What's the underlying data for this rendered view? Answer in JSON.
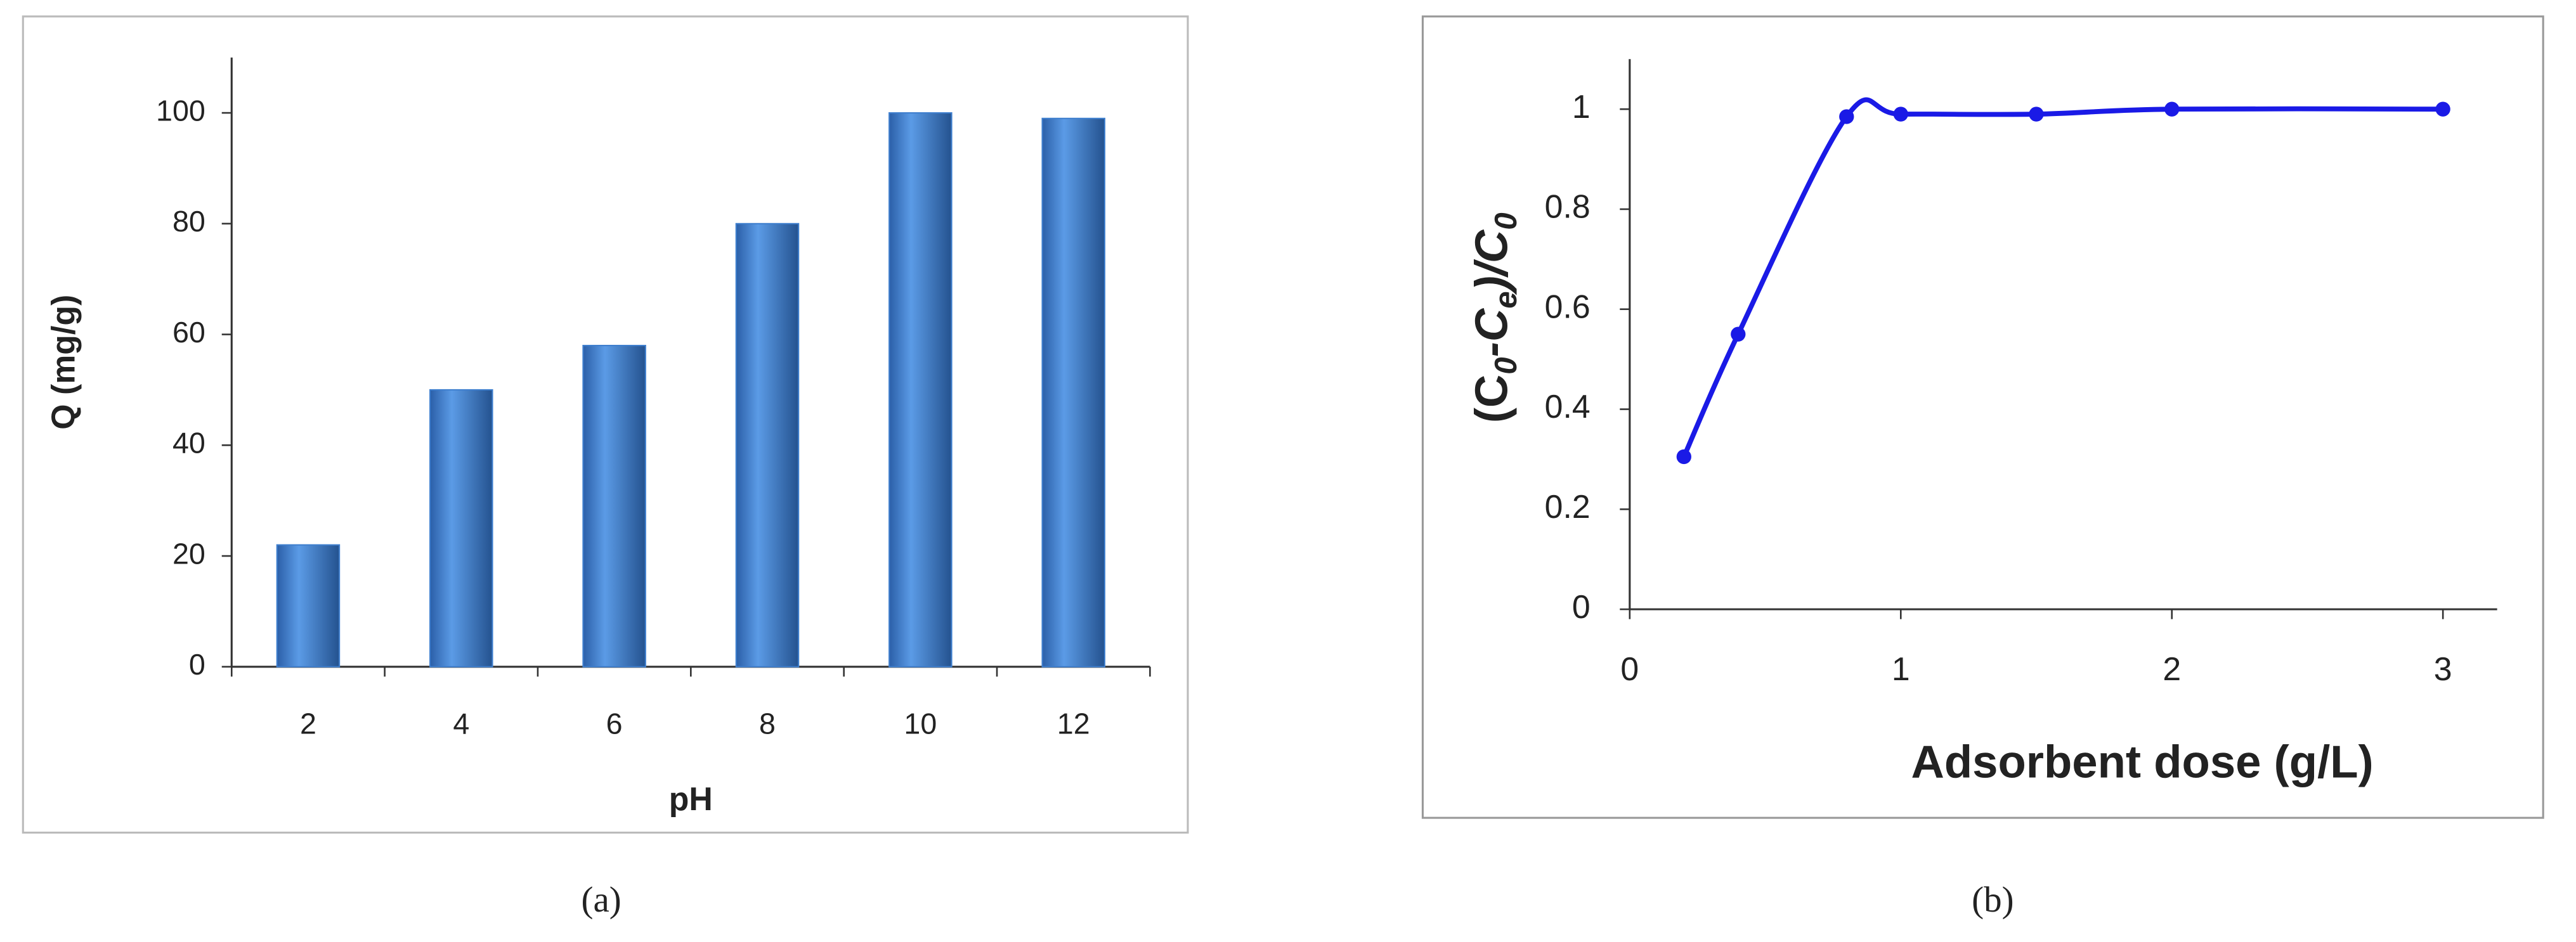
{
  "chart_data": [
    {
      "type": "bar",
      "caption": "(a)",
      "y_label": "Q (mg/g)",
      "x_label": "pH",
      "categories": [
        "2",
        "4",
        "6",
        "8",
        "10",
        "12"
      ],
      "values": [
        22,
        50,
        58,
        80,
        100,
        99
      ],
      "color": "#3f7fce",
      "ylim": [
        0,
        110
      ],
      "yticks": [
        0,
        20,
        40,
        60,
        80,
        100
      ]
    },
    {
      "type": "line",
      "caption": "(b)",
      "x_label": "Adsorbent dose  (g/L)",
      "y_label_parts": [
        "(C",
        "0",
        "-C",
        "e",
        ")/C",
        "0"
      ],
      "x": [
        0.2,
        0.4,
        0.8,
        1,
        1.5,
        2,
        3
      ],
      "series": [
        {
          "color": "#1a1ae6",
          "values": [
            0.305,
            0.55,
            0.985,
            0.99,
            0.99,
            1.0,
            1.0
          ]
        }
      ],
      "xlim": [
        0,
        3.2
      ],
      "xticks": [
        0,
        1,
        2,
        3
      ],
      "ylim": [
        0,
        1.1
      ],
      "yticks": [
        0,
        0.2,
        0.4,
        0.6,
        0.8,
        1
      ]
    }
  ]
}
